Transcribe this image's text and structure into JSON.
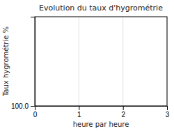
{
  "chart_data": {
    "type": "line",
    "title": "Evolution du taux d'hygrométrie",
    "xlabel": "heure par heure",
    "ylabel": "Taux hygrométrie %",
    "xlim": [
      0,
      3
    ],
    "xticks": [
      0,
      1,
      2,
      3
    ],
    "ylim": [
      100,
      0
    ],
    "yticks": [
      {
        "value": 100,
        "label": "100.0"
      }
    ],
    "grid": true
  }
}
